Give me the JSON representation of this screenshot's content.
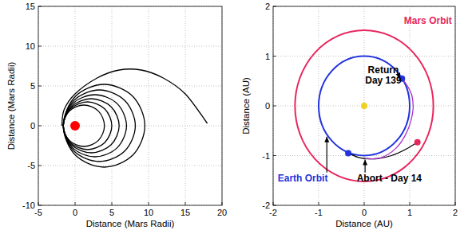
{
  "chart_data": [
    {
      "type": "line",
      "xlabel": "Distance (Mars Radii)",
      "ylabel": "Distance (Mars Radii)",
      "xlim": [
        -5,
        20
      ],
      "ylim": [
        -10,
        15
      ],
      "xticks": [
        -5,
        0,
        5,
        10,
        15,
        20
      ],
      "yticks": [
        -10,
        -5,
        0,
        5,
        10,
        15
      ],
      "grid": true,
      "series": [
        {
          "color": "#000000",
          "x": [
            18,
            15,
            12,
            9,
            6,
            3,
            0,
            -1.5,
            -1.8
          ],
          "values": [
            0.3,
            4,
            6,
            7,
            7,
            6,
            4,
            2,
            0
          ]
        },
        {
          "color": "#000000",
          "x": [
            9.5,
            7.87,
            3.95,
            0.03,
            -1.6,
            0.03,
            3.95,
            7.87,
            9.5
          ],
          "values": [
            0,
            3.68,
            5.2,
            3.68,
            0,
            -3.68,
            -5.2,
            -3.68,
            0
          ]
        },
        {
          "color": "#000000",
          "x": [
            8.2,
            6.76,
            3.3,
            -0.16,
            -1.6,
            -0.16,
            3.3,
            6.76,
            8.2
          ],
          "values": [
            0,
            3.18,
            4.5,
            3.18,
            0,
            -3.18,
            -4.5,
            -3.18,
            0
          ]
        },
        {
          "color": "#000000",
          "x": [
            7,
            5.74,
            2.7,
            -0.34,
            -1.6,
            -0.34,
            2.7,
            5.74,
            7
          ],
          "values": [
            0,
            2.76,
            3.9,
            2.76,
            0,
            -2.76,
            -3.9,
            -2.76,
            0
          ]
        },
        {
          "color": "#000000",
          "x": [
            6,
            4.89,
            2.2,
            -0.49,
            -1.6,
            -0.49,
            2.2,
            4.89,
            6
          ],
          "values": [
            0,
            2.4,
            3.4,
            2.4,
            0,
            -2.4,
            -3.4,
            -2.4,
            0
          ]
        },
        {
          "color": "#000000",
          "x": [
            5,
            4.03,
            1.7,
            -0.63,
            -1.6,
            -0.63,
            1.7,
            4.03,
            5
          ],
          "values": [
            0,
            2.12,
            3,
            2.12,
            0,
            -2.12,
            -3,
            -2.12,
            0
          ]
        },
        {
          "color": "#000000",
          "x": [
            4,
            3.18,
            1.2,
            -0.78,
            -1.6,
            -0.78,
            1.2,
            3.18,
            4
          ],
          "values": [
            0,
            1.84,
            2.6,
            1.84,
            0,
            -1.84,
            -2.6,
            -1.84,
            0
          ]
        },
        {
          "type": "scatter",
          "marker": "big-circle",
          "color": "#ff0000",
          "x": [
            0
          ],
          "values": [
            0
          ]
        }
      ]
    },
    {
      "type": "line",
      "xlabel": "Distance (AU)",
      "ylabel": "Distance (AU)",
      "xlim": [
        -2,
        2
      ],
      "ylim": [
        -2,
        2
      ],
      "xticks": [
        -2,
        -1,
        0,
        1,
        2
      ],
      "yticks": [
        -2,
        -1,
        0,
        1,
        2
      ],
      "grid": true,
      "series": [
        {
          "type": "orbit",
          "color": "#e8265e",
          "center": [
            0,
            0
          ],
          "radius": 1.52
        },
        {
          "type": "orbit",
          "color": "#2233dd",
          "center": [
            0,
            0
          ],
          "radius": 1.0
        },
        {
          "color": "#000000",
          "x": [
            -0.35,
            -0.15,
            0.02,
            0.3,
            0.6,
            0.9,
            1.17
          ],
          "values": [
            -0.95,
            -1.03,
            -1.06,
            -1.06,
            -1.0,
            -0.88,
            -0.73
          ]
        },
        {
          "color": "#aa33cc",
          "x": [
            0.02,
            0.35,
            0.7,
            0.95,
            1.07,
            1.05,
            0.95,
            0.83
          ],
          "values": [
            -1.06,
            -1.05,
            -0.85,
            -0.5,
            -0.1,
            0.2,
            0.4,
            0.55
          ]
        },
        {
          "type": "scatter",
          "marker": "circle",
          "color": "#f0d020",
          "x": [
            0
          ],
          "values": [
            0
          ]
        },
        {
          "type": "scatter",
          "marker": "circle",
          "color": "#2233dd",
          "x": [
            -0.35,
            0.83
          ],
          "values": [
            -0.95,
            0.55
          ]
        },
        {
          "type": "scatter",
          "marker": "circle",
          "color": "#e8265e",
          "x": [
            1.17
          ],
          "values": [
            -0.73
          ]
        }
      ],
      "annotations": [
        {
          "text": "Mars Orbit",
          "x": 1.4,
          "y": 1.72,
          "color": "#e8265e"
        },
        {
          "text": "Earth Orbit",
          "x": -1.35,
          "y": -1.45,
          "color": "#2233dd",
          "arrow": [
            -0.82,
            -0.62
          ]
        },
        {
          "text": "Return",
          "x": 0.42,
          "y": 0.72,
          "color": "#000000",
          "arrow": [
            0.78,
            0.55
          ]
        },
        {
          "text": "Day 139",
          "x": 0.42,
          "y": 0.52,
          "color": "#000000"
        },
        {
          "text": "Abort - Day 14",
          "x": 0.55,
          "y": -1.45,
          "color": "#000000",
          "arrow": [
            0.02,
            -1.08
          ]
        }
      ]
    }
  ]
}
